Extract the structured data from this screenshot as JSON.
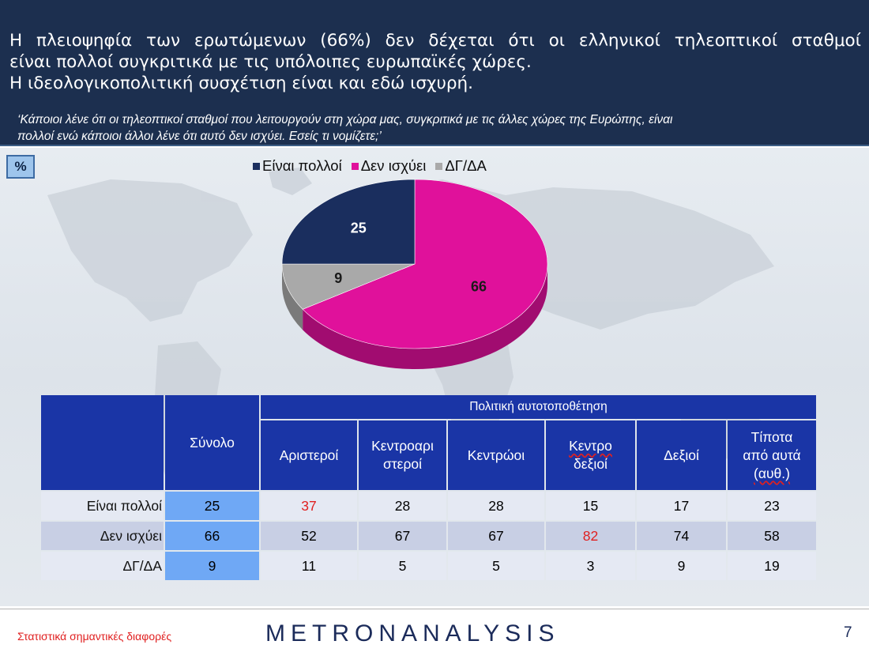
{
  "header": {
    "headline_lines": [
      "Η πλειοψηφία των ερωτώμενων (66%) δεν δέχεται ότι οι ελληνικοί τηλεοπτικοί σταθμοί",
      "είναι πολλοί συγκριτικά με τις υπόλοιπες  ευρωπαϊκές χώρες.",
      "Η ιδεολογικοπολιτική  συσχέτιση είναι και εδώ ισχυρή."
    ],
    "question_lines": [
      "‘Κάποιοι λένε ότι οι τηλεοπτικοί σταθμοί που λειτουργούν στη χώρα μας, συγκριτικά με τις άλλες χώρες της Ευρώπης, είναι",
      "πολλοί ενώ κάποιοι άλλοι λένε ότι αυτό δεν ισχύει. Εσείς τι νομίζετε;’"
    ]
  },
  "badge": "%",
  "colors": {
    "header_bg": "#1c2f4f",
    "slice_1": "#1a2e5e",
    "slice_2": "#e0119b",
    "slice_3": "#a9a9a9",
    "table_header": "#1a35a6",
    "total_column": "#6fa8f5",
    "significant": "#e02020"
  },
  "chart_data": {
    "type": "pie",
    "legend_position": "top",
    "series": [
      {
        "name": "Είναι πολλοί",
        "value": 25,
        "color": "#1a2e5e"
      },
      {
        "name": "Δεν ισχύει",
        "value": 66,
        "color": "#e0119b"
      },
      {
        "name": "ΔΓ/ΔΑ",
        "value": 9,
        "color": "#a9a9a9"
      }
    ]
  },
  "table": {
    "group_header": "Πολιτική αυτοτοποθέτηση",
    "columns": [
      [
        "Σύνολο"
      ],
      [
        "Αριστεροί"
      ],
      [
        "Κεντροαρι",
        "στεροί"
      ],
      [
        "Κεντρώοι"
      ],
      [
        "Κεντρο",
        "δεξιοί"
      ],
      [
        "Δεξιοί"
      ],
      [
        "Τίποτα",
        "από αυτά",
        "(αυθ.)"
      ]
    ],
    "rows": [
      {
        "label": "Είναι πολλοί",
        "values": [
          "25",
          "37",
          "28",
          "28",
          "15",
          "17",
          "23"
        ],
        "highlight": [
          1
        ]
      },
      {
        "label": "Δεν ισχύει",
        "values": [
          "66",
          "52",
          "67",
          "67",
          "82",
          "74",
          "58"
        ],
        "highlight": [
          4
        ]
      },
      {
        "label": "ΔΓ/ΔΑ",
        "values": [
          "9",
          "11",
          "5",
          "5",
          "3",
          "9",
          "19"
        ],
        "highlight": []
      }
    ]
  },
  "footer": {
    "note": "Στατιστικά σημαντικές διαφορές",
    "brand": "METRONANALYSIS",
    "page_number": "7"
  }
}
